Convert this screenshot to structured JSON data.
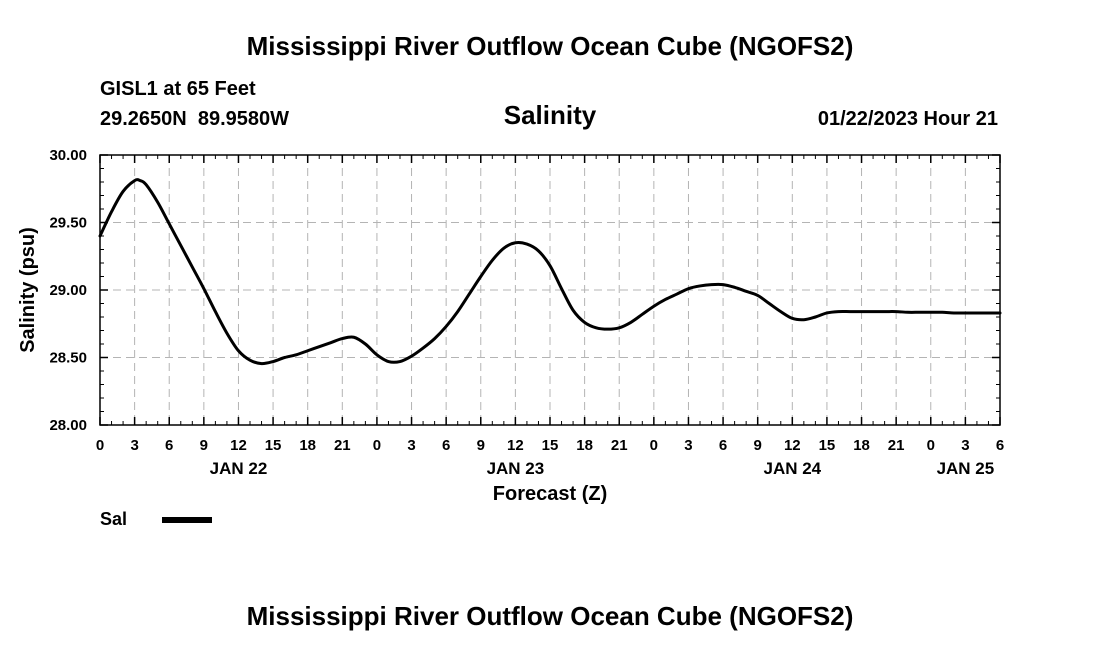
{
  "page": {
    "title": "Mississippi River Outflow Ocean Cube (NGOFS2)",
    "footer_title": "Mississippi River Outflow Ocean Cube (NGOFS2)"
  },
  "station": {
    "name": "GISL1 at 65 Feet",
    "coords": "29.2650N  89.9580W"
  },
  "chart_data": {
    "type": "line",
    "title": "Salinity",
    "timestamp": "01/22/2023 Hour 21",
    "xlabel": "Forecast (Z)",
    "ylabel": "Salinity (psu)",
    "xlim": [
      0,
      78
    ],
    "ylim": [
      28.0,
      30.0
    ],
    "y_ticks": [
      28.0,
      28.5,
      29.0,
      29.5,
      30.0
    ],
    "y_tick_labels": [
      "28.00",
      "28.50",
      "29.00",
      "29.50",
      "30.00"
    ],
    "x_ticks": [
      0,
      3,
      6,
      9,
      12,
      15,
      18,
      21,
      24,
      27,
      30,
      33,
      36,
      39,
      42,
      45,
      48,
      51,
      54,
      57,
      60,
      63,
      66,
      69,
      72,
      75,
      78
    ],
    "x_tick_labels": [
      "0",
      "3",
      "6",
      "9",
      "12",
      "15",
      "18",
      "21",
      "0",
      "3",
      "6",
      "9",
      "12",
      "15",
      "18",
      "21",
      "0",
      "3",
      "6",
      "9",
      "12",
      "15",
      "18",
      "21",
      "0",
      "3",
      "6"
    ],
    "date_labels": [
      {
        "x": 12,
        "label": "JAN 22"
      },
      {
        "x": 36,
        "label": "JAN 23"
      },
      {
        "x": 60,
        "label": "JAN 24"
      },
      {
        "x": 75,
        "label": "JAN 25"
      }
    ],
    "grid": true,
    "legend": {
      "position": "bottom-left",
      "label": "Sal"
    },
    "series": [
      {
        "name": "Sal",
        "color": "#000000",
        "x": [
          0,
          1,
          2,
          3,
          3.5,
          4,
          5,
          6,
          7,
          8,
          9,
          10,
          11,
          12,
          13,
          14,
          15,
          16,
          17,
          18,
          19,
          20,
          21,
          22,
          23,
          24,
          25,
          26,
          27,
          28,
          29,
          30,
          31,
          32,
          33,
          34,
          35,
          36,
          37,
          38,
          39,
          40,
          41,
          42,
          43,
          44,
          45,
          46,
          47,
          48,
          49,
          50,
          51,
          52,
          53,
          54,
          55,
          56,
          57,
          58,
          59,
          60,
          61,
          62,
          63,
          64,
          65,
          66,
          67,
          68,
          69,
          70,
          71,
          72,
          73,
          74,
          75,
          76,
          77,
          78
        ],
        "values": [
          29.4,
          29.58,
          29.73,
          29.81,
          29.81,
          29.78,
          29.65,
          29.49,
          29.33,
          29.17,
          29.01,
          28.84,
          28.68,
          28.55,
          28.48,
          28.455,
          28.47,
          28.5,
          28.52,
          28.55,
          28.58,
          28.61,
          28.64,
          28.65,
          28.6,
          28.52,
          28.47,
          28.47,
          28.51,
          28.57,
          28.64,
          28.73,
          28.84,
          28.97,
          29.1,
          29.22,
          29.31,
          29.35,
          29.34,
          29.29,
          29.18,
          29.01,
          28.85,
          28.76,
          28.72,
          28.71,
          28.72,
          28.76,
          28.82,
          28.88,
          28.93,
          28.97,
          29.01,
          29.03,
          29.04,
          29.04,
          29.02,
          28.99,
          28.96,
          28.9,
          28.84,
          28.79,
          28.78,
          28.8,
          28.83,
          28.84,
          28.84,
          28.84,
          28.84,
          28.84,
          28.84,
          28.835,
          28.835,
          28.835,
          28.835,
          28.83,
          28.83,
          28.83,
          28.83,
          28.83
        ]
      }
    ]
  }
}
